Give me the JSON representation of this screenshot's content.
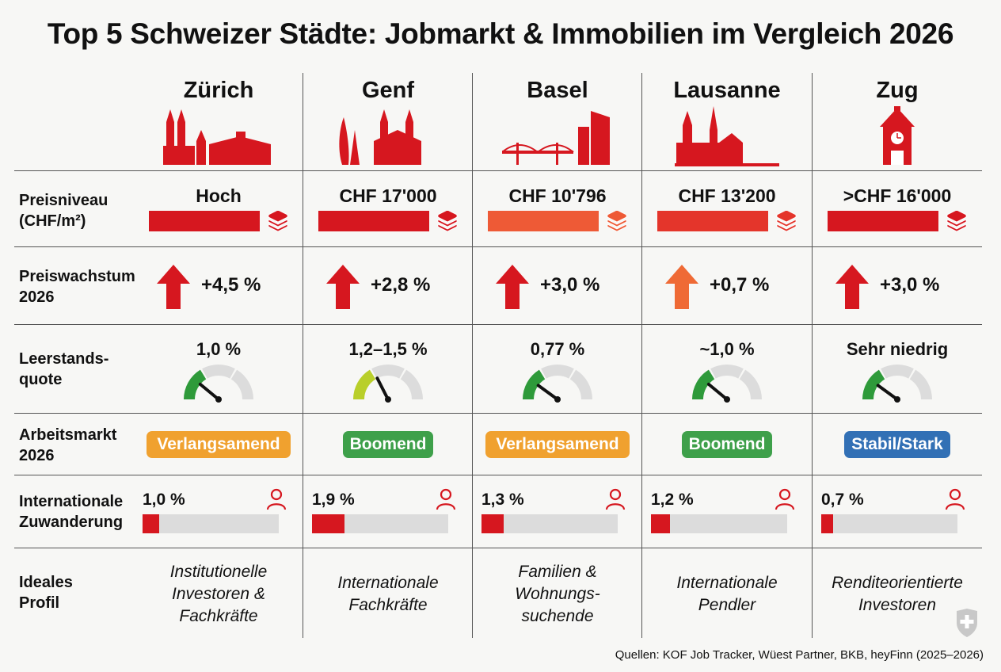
{
  "title": "Top 5 Schweizer Städte: Jobmarkt & Immobilien im Vergleich 2026",
  "row_labels": {
    "price": [
      "Preisniveau",
      "(CHF/m²)"
    ],
    "growth": [
      "Preiswachstum",
      "2026"
    ],
    "vacancy": [
      "Leerstands-",
      "quote"
    ],
    "labor": [
      "Arbeitsmarkt",
      "2026"
    ],
    "migration": [
      "Internationale",
      "Zuwanderung"
    ],
    "profile": [
      "Ideales",
      "Profil"
    ]
  },
  "cities": [
    {
      "name": "Zürich",
      "skyline_icon": "zurich-skyline-icon",
      "price": "Hoch",
      "price_level": 1.0,
      "price_color": "#d6171f",
      "growth": "+4,5 %",
      "arrow_color": "#d6171f",
      "vacancy": "1,0 %",
      "gauge_color": "#2e9a3a",
      "gauge_level": 0.22,
      "labor": "Verlangsamend",
      "labor_color": "#f0a12f",
      "migration": "1,0 %",
      "migration_level": 0.12,
      "profile": [
        "Institutionelle",
        "Investoren &",
        "Fachkräfte"
      ]
    },
    {
      "name": "Genf",
      "skyline_icon": "geneva-skyline-icon",
      "price": "CHF 17'000",
      "price_level": 1.0,
      "price_color": "#d6171f",
      "growth": "+2,8 %",
      "arrow_color": "#d6171f",
      "vacancy": "1,2–1,5 %",
      "gauge_color": "#b9cf2a",
      "gauge_level": 0.35,
      "labor": "Boomend",
      "labor_color": "#3ea04a",
      "migration": "1,9 %",
      "migration_level": 0.24,
      "profile": [
        "Internationale",
        "Fachkräfte"
      ]
    },
    {
      "name": "Basel",
      "skyline_icon": "basel-skyline-icon",
      "price": "CHF 10'796",
      "price_level": 1.0,
      "price_color": "#ee5a36",
      "growth": "+3,0 %",
      "arrow_color": "#d6171f",
      "vacancy": "0,77 %",
      "gauge_color": "#2e9a3a",
      "gauge_level": 0.2,
      "labor": "Verlangsamend",
      "labor_color": "#f0a12f",
      "migration": "1,3 %",
      "migration_level": 0.16,
      "profile": [
        "Familien &",
        "Wohnungs-",
        "suchende"
      ]
    },
    {
      "name": "Lausanne",
      "skyline_icon": "lausanne-skyline-icon",
      "price": "CHF 13'200",
      "price_level": 1.0,
      "price_color": "#e4352b",
      "growth": "+0,7 %",
      "arrow_color": "#ef6a35",
      "vacancy": "~1,0 %",
      "gauge_color": "#2e9a3a",
      "gauge_level": 0.22,
      "labor": "Boomend",
      "labor_color": "#3ea04a",
      "migration": "1,2 %",
      "migration_level": 0.14,
      "profile": [
        "Internationale",
        "Pendler"
      ]
    },
    {
      "name": "Zug",
      "skyline_icon": "zug-clocktower-icon",
      "price": ">CHF 16'000",
      "price_level": 1.0,
      "price_color": "#d6171f",
      "growth": "+3,0 %",
      "arrow_color": "#d6171f",
      "vacancy": "Sehr niedrig",
      "gauge_color": "#2e9a3a",
      "gauge_level": 0.2,
      "labor": "Stabil/Stark",
      "labor_color": "#3270b5",
      "migration": "0,7 %",
      "migration_level": 0.09,
      "profile": [
        "Renditeorientierte",
        "Investoren"
      ]
    }
  ],
  "sources": "Quellen: KOF Job Tracker, Wüest Partner, BKB, heyFinn (2025–2026)",
  "icons": {
    "price": "stack-icon",
    "migration": "person-icon",
    "corner": "swiss-shield-icon"
  }
}
